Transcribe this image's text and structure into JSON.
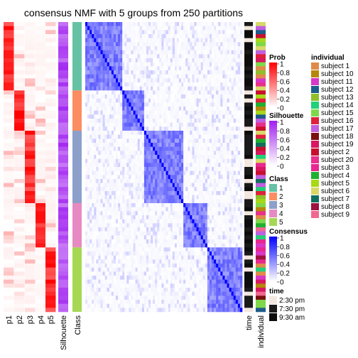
{
  "chart_data": {
    "type": "heatmap",
    "title": "consensus NMF with 5 groups from 250 partitions",
    "n_samples": 72,
    "group_sizes": [
      17,
      10,
      18,
      11,
      16
    ],
    "column_labels": {
      "prob": [
        "p1",
        "p2",
        "p3",
        "p4",
        "p5"
      ],
      "silhouette": "Silhouette",
      "class": "Class",
      "time": "time",
      "individual": "individual"
    },
    "legends": {
      "prob": {
        "title": "Prob",
        "ticks": [
          "1",
          "0.8",
          "0.6",
          "0.4",
          "0.2",
          "0"
        ]
      },
      "silhouette": {
        "title": "Silhouette",
        "ticks": [
          "1",
          "0.8",
          "0.6",
          "0.4",
          "0.2",
          "0"
        ]
      },
      "class": {
        "title": "Class",
        "items": [
          {
            "label": "1",
            "color": "#66c2a5"
          },
          {
            "label": "2",
            "color": "#fc8d62"
          },
          {
            "label": "3",
            "color": "#8da0cb"
          },
          {
            "label": "4",
            "color": "#e78ac3"
          },
          {
            "label": "5",
            "color": "#a6d854"
          }
        ]
      },
      "consensus": {
        "title": "Consensus",
        "ticks": [
          "1",
          "0.8",
          "0.6",
          "0.4",
          "0.2",
          "0"
        ]
      },
      "time": {
        "title": "time",
        "items": [
          {
            "label": "2:30 pm",
            "color": "#f2e6df"
          },
          {
            "label": "7:30 pm",
            "color": "#1a1a1a"
          },
          {
            "label": "9:30 am",
            "color": "#0d0d0d"
          }
        ]
      },
      "individual": {
        "title": "individual",
        "items": [
          {
            "label": "subject 1",
            "color": "#e08a4a"
          },
          {
            "label": "subject 10",
            "color": "#b8860b"
          },
          {
            "label": "subject 11",
            "color": "#d838c8"
          },
          {
            "label": "subject 12",
            "color": "#1f5c8c"
          },
          {
            "label": "subject 13",
            "color": "#8fbf2a"
          },
          {
            "label": "subject 14",
            "color": "#22d07a"
          },
          {
            "label": "subject 15",
            "color": "#7fd84a"
          },
          {
            "label": "subject 16",
            "color": "#e0203c"
          },
          {
            "label": "subject 17",
            "color": "#c060e0"
          },
          {
            "label": "subject 18",
            "color": "#7a1010"
          },
          {
            "label": "subject 19",
            "color": "#d81860"
          },
          {
            "label": "subject 2",
            "color": "#c8102e"
          },
          {
            "label": "subject 20",
            "color": "#e8308c"
          },
          {
            "label": "subject 3",
            "color": "#e82890"
          },
          {
            "label": "subject 4",
            "color": "#20b030"
          },
          {
            "label": "subject 5",
            "color": "#a8d818"
          },
          {
            "label": "subject 6",
            "color": "#d8d868"
          },
          {
            "label": "subject 7",
            "color": "#107060"
          },
          {
            "label": "subject 8",
            "color": "#a01040"
          },
          {
            "label": "subject 9",
            "color": "#f06890"
          }
        ]
      }
    },
    "colors": {
      "prob_high": "#ff0000",
      "silhouette_high": "#a020f0",
      "consensus_high": "#0000ff",
      "low": "#ffffff"
    }
  }
}
